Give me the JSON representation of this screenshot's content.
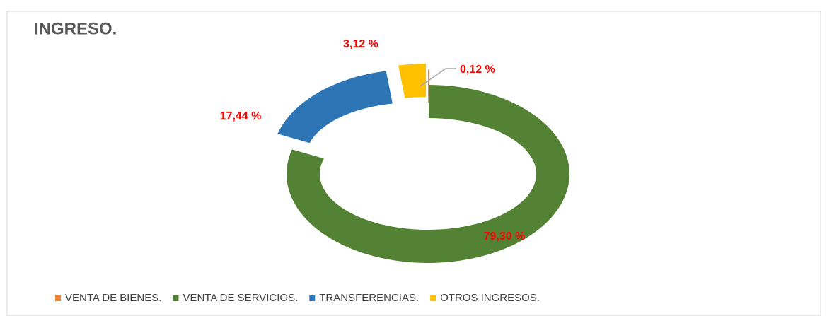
{
  "chart_data": {
    "type": "doughnut",
    "title": "INGRESO.",
    "categories": [
      "VENTA DE BIENES.",
      "VENTA DE SERVICIOS.",
      "TRANSFERENCIAS.",
      "OTROS INGRESOS."
    ],
    "values": [
      0.12,
      79.3,
      17.44,
      3.12
    ],
    "value_labels": [
      "0,12 %",
      "79,30 %",
      "17,44 %",
      "3,12 %"
    ],
    "colors": [
      "#ed7d31",
      "#548235",
      "#2e75b6",
      "#ffc000"
    ],
    "legend": "bottom"
  }
}
